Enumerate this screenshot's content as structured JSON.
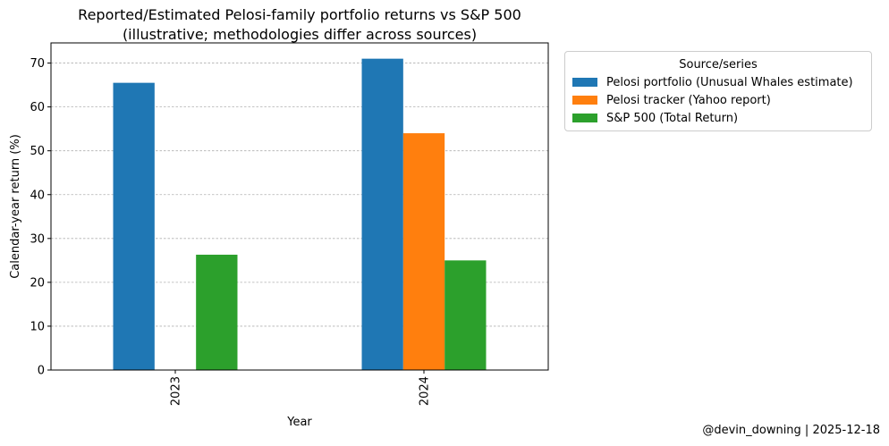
{
  "chart_data": {
    "type": "bar",
    "title_lines": [
      "Reported/Estimated Pelosi-family portfolio returns vs S&P 500",
      "(illustrative; methodologies differ across sources)"
    ],
    "xlabel": "Year",
    "ylabel": "Calendar-year return (%)",
    "categories": [
      "2023",
      "2024"
    ],
    "ylim": [
      0,
      74.6
    ],
    "yticks": [
      0,
      10,
      20,
      30,
      40,
      50,
      60,
      70
    ],
    "grid": "y, dashed",
    "legend_title": "Source/series",
    "legend_position": "outside-right",
    "series": [
      {
        "name": "Pelosi portfolio (Unusual Whales estimate)",
        "color": "#1f77b4",
        "values": [
          65.5,
          71.0
        ]
      },
      {
        "name": "Pelosi tracker (Yahoo report)",
        "color": "#ff7f0e",
        "values": [
          null,
          54.0
        ]
      },
      {
        "name": "S&P 500 (Total Return)",
        "color": "#2ca02c",
        "values": [
          26.3,
          25.0
        ]
      }
    ]
  },
  "footer": "@devin_downing | 2025-12-18"
}
